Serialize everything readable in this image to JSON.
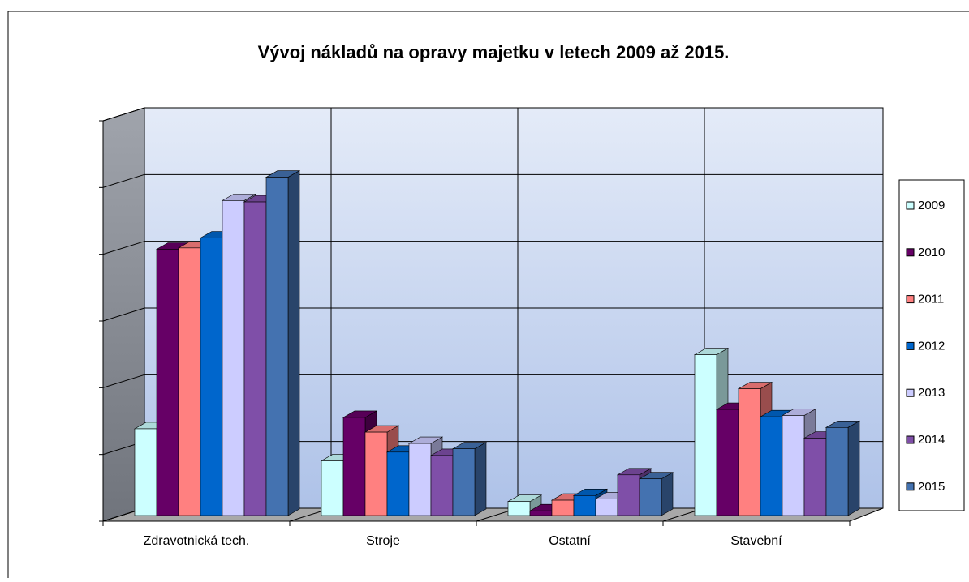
{
  "chart_data": {
    "type": "bar3d",
    "title": "Vývoj nákladů na opravy majetku v letech 2009 až 2015.",
    "categories": [
      "Zdravotnická tech.",
      "Stroje",
      "Ostatní",
      "Stavební"
    ],
    "series": [
      {
        "name": "2009",
        "color": "#ccffff",
        "values": [
          1.3,
          0.82,
          0.21,
          2.41
        ]
      },
      {
        "name": "2010",
        "color": "#660066",
        "values": [
          3.99,
          1.47,
          0.07,
          1.59
        ]
      },
      {
        "name": "2011",
        "color": "#ff8080",
        "values": [
          4.01,
          1.25,
          0.23,
          1.9
        ]
      },
      {
        "name": "2012",
        "color": "#0066cc",
        "values": [
          4.16,
          0.95,
          0.3,
          1.48
        ]
      },
      {
        "name": "2013",
        "color": "#ccccff",
        "values": [
          4.72,
          1.08,
          0.25,
          1.5
        ]
      },
      {
        "name": "2014",
        "color": "#7f4fa8",
        "values": [
          4.7,
          0.9,
          0.61,
          1.16
        ]
      },
      {
        "name": "2015",
        "color": "#4472b0",
        "values": [
          5.07,
          1.0,
          0.55,
          1.32
        ]
      }
    ],
    "ylim": [
      0,
      6
    ],
    "yticks": [
      0,
      1,
      2,
      3,
      4,
      5,
      6
    ],
    "grid": true,
    "legend": "right"
  }
}
